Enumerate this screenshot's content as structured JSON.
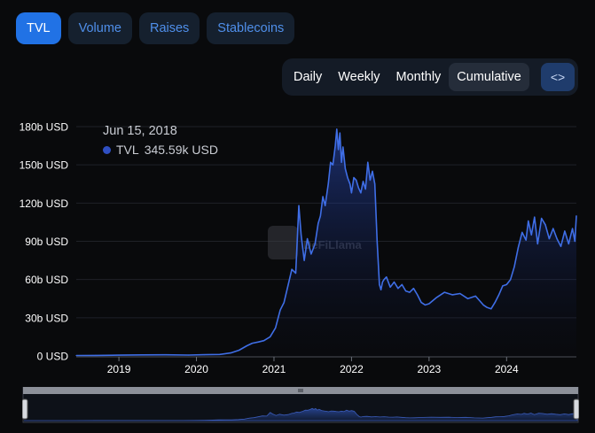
{
  "tabs": [
    {
      "label": "TVL",
      "active": true
    },
    {
      "label": "Volume",
      "active": false
    },
    {
      "label": "Raises",
      "active": false
    },
    {
      "label": "Stablecoins",
      "active": false
    }
  ],
  "granularity": [
    {
      "label": "Daily",
      "active": false
    },
    {
      "label": "Weekly",
      "active": false
    },
    {
      "label": "Monthly",
      "active": false
    },
    {
      "label": "Cumulative",
      "active": true
    }
  ],
  "embed_label": "<>",
  "tooltip": {
    "date": "Jun 15, 2018",
    "series": "TVL",
    "value": "345.59k USD"
  },
  "watermark": "DeFiLlama",
  "colors": {
    "accent": "#2172e5",
    "line": "#3f6ee6",
    "background": "#090a0c"
  },
  "chart_data": {
    "type": "area",
    "title": "",
    "xlabel": "",
    "ylabel": "",
    "ylim": [
      0,
      180
    ],
    "yticks": [
      0,
      30,
      60,
      90,
      120,
      150,
      180
    ],
    "ytick_labels": [
      "0 USD",
      "30b USD",
      "60b USD",
      "90b USD",
      "120b USD",
      "150b USD",
      "180b USD"
    ],
    "xticks": [
      2019,
      2020,
      2021,
      2022,
      2023,
      2024
    ],
    "xtick_labels": [
      "2019",
      "2020",
      "2021",
      "2022",
      "2023",
      "2024"
    ],
    "xlim": [
      2018.45,
      2024.9
    ],
    "grid": true,
    "series": [
      {
        "name": "TVL",
        "x": [
          2018.45,
          2018.7,
          2019.0,
          2019.3,
          2019.6,
          2019.9,
          2020.1,
          2020.3,
          2020.45,
          2020.55,
          2020.65,
          2020.72,
          2020.8,
          2020.87,
          2020.95,
          2021.02,
          2021.08,
          2021.13,
          2021.18,
          2021.23,
          2021.28,
          2021.32,
          2021.35,
          2021.39,
          2021.43,
          2021.48,
          2021.53,
          2021.57,
          2021.6,
          2021.63,
          2021.66,
          2021.7,
          2021.73,
          2021.76,
          2021.79,
          2021.81,
          2021.83,
          2021.85,
          2021.87,
          2021.89,
          2021.92,
          2021.95,
          2021.98,
          2022.0,
          2022.03,
          2022.06,
          2022.09,
          2022.12,
          2022.15,
          2022.18,
          2022.21,
          2022.24,
          2022.27,
          2022.3,
          2022.33,
          2022.36,
          2022.38,
          2022.4,
          2022.42,
          2022.45,
          2022.5,
          2022.55,
          2022.6,
          2022.65,
          2022.7,
          2022.75,
          2022.8,
          2022.85,
          2022.9,
          2022.95,
          2023.0,
          2023.1,
          2023.2,
          2023.3,
          2023.4,
          2023.5,
          2023.6,
          2023.7,
          2023.75,
          2023.8,
          2023.85,
          2023.9,
          2023.95,
          2024.0,
          2024.05,
          2024.1,
          2024.15,
          2024.2,
          2024.25,
          2024.28,
          2024.32,
          2024.36,
          2024.4,
          2024.45,
          2024.5,
          2024.55,
          2024.6,
          2024.65,
          2024.7,
          2024.75,
          2024.8,
          2024.85,
          2024.88,
          2024.9
        ],
        "values": [
          0.35,
          0.4,
          0.6,
          0.8,
          0.9,
          0.7,
          1.0,
          1.2,
          2.5,
          4.5,
          8,
          10,
          11,
          12,
          15,
          22,
          36,
          42,
          55,
          68,
          65,
          118,
          95,
          75,
          92,
          80,
          88,
          104,
          110,
          125,
          118,
          135,
          152,
          150,
          165,
          178,
          162,
          175,
          152,
          164,
          147,
          140,
          135,
          128,
          140,
          138,
          132,
          128,
          137,
          131,
          152,
          138,
          145,
          135,
          90,
          56,
          52,
          58,
          60,
          62,
          54,
          58,
          53,
          56,
          51,
          50,
          53,
          48,
          42,
          40,
          41,
          46,
          50,
          48,
          49,
          45,
          47,
          40,
          38,
          37,
          42,
          48,
          55,
          56,
          60,
          70,
          85,
          97,
          91,
          106,
          95,
          109,
          88,
          108,
          103,
          92,
          100,
          92,
          86,
          98,
          88,
          100,
          90,
          110
        ]
      }
    ]
  }
}
